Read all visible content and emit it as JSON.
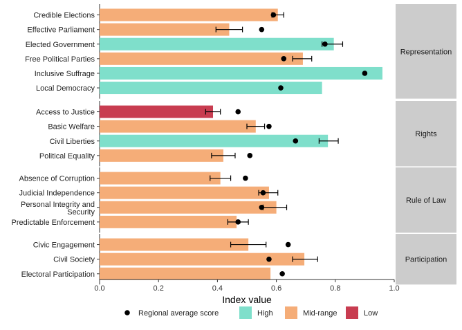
{
  "chart_data": {
    "type": "bar",
    "orientation": "horizontal",
    "xlabel": "Index value",
    "xlim": [
      0,
      1
    ],
    "xticks": [
      0,
      0.2,
      0.4,
      0.6,
      0.8,
      1
    ],
    "xtick_labels": [
      "0.0",
      "0.2",
      "0.4",
      "0.6",
      "0.8",
      "1.0"
    ],
    "grid": false,
    "legend_position": "bottom",
    "colors": {
      "High": "#7fdfcb",
      "Mid-range": "#f5ad78",
      "Low": "#c83c50",
      "marker": "#000000",
      "strip": "#cccccc"
    },
    "legend": {
      "marker_label": "Regional average score",
      "categories": [
        "High",
        "Mid-range",
        "Low"
      ]
    },
    "groups": [
      {
        "name": "Representation",
        "items": [
          {
            "label": "Credible Elections",
            "value": 0.605,
            "category": "Mid-range",
            "avg": 0.59,
            "err": [
              0.585,
              0.625
            ]
          },
          {
            "label": "Effective Parliament",
            "value": 0.44,
            "category": "Mid-range",
            "avg": 0.55,
            "err": [
              0.395,
              0.485
            ]
          },
          {
            "label": "Elected Government",
            "value": 0.795,
            "category": "High",
            "avg": 0.765,
            "err": [
              0.755,
              0.825
            ]
          },
          {
            "label": "Free Political Parties",
            "value": 0.69,
            "category": "Mid-range",
            "avg": 0.625,
            "err": [
              0.655,
              0.72
            ]
          },
          {
            "label": "Inclusive Suffrage",
            "value": 0.96,
            "category": "High",
            "avg": 0.9,
            "err": null
          },
          {
            "label": "Local Democracy",
            "value": 0.755,
            "category": "High",
            "avg": 0.615,
            "err": null
          }
        ]
      },
      {
        "name": "Rights",
        "items": [
          {
            "label": "Access to Justice",
            "value": 0.385,
            "category": "Low",
            "avg": 0.47,
            "err": [
              0.36,
              0.41
            ]
          },
          {
            "label": "Basic Welfare",
            "value": 0.53,
            "category": "Mid-range",
            "avg": 0.575,
            "err": [
              0.5,
              0.56
            ]
          },
          {
            "label": "Civil Liberties",
            "value": 0.775,
            "category": "High",
            "avg": 0.665,
            "err": [
              0.745,
              0.81
            ]
          },
          {
            "label": "Political Equality",
            "value": 0.42,
            "category": "Mid-range",
            "avg": 0.51,
            "err": [
              0.38,
              0.46
            ]
          }
        ]
      },
      {
        "name": "Rule of Law",
        "items": [
          {
            "label": "Absence of Corruption",
            "value": 0.41,
            "category": "Mid-range",
            "avg": 0.495,
            "err": [
              0.375,
              0.445
            ]
          },
          {
            "label": "Judicial Independence",
            "value": 0.575,
            "category": "Mid-range",
            "avg": 0.555,
            "err": [
              0.54,
              0.605
            ]
          },
          {
            "label": "Personal Integrity and Security",
            "value": 0.6,
            "category": "Mid-range",
            "avg": 0.55,
            "err": [
              0.555,
              0.635
            ]
          },
          {
            "label": "Predictable Enforcement",
            "value": 0.465,
            "category": "Mid-range",
            "avg": 0.47,
            "err": [
              0.435,
              0.505
            ]
          }
        ]
      },
      {
        "name": "Participation",
        "items": [
          {
            "label": "Civic Engagement",
            "value": 0.505,
            "category": "Mid-range",
            "avg": 0.64,
            "err": [
              0.445,
              0.565
            ]
          },
          {
            "label": "Civil Society",
            "value": 0.695,
            "category": "Mid-range",
            "avg": 0.575,
            "err": [
              0.655,
              0.74
            ]
          },
          {
            "label": "Electoral Participation",
            "value": 0.58,
            "category": "Mid-range",
            "avg": 0.62,
            "err": null
          }
        ]
      }
    ]
  }
}
